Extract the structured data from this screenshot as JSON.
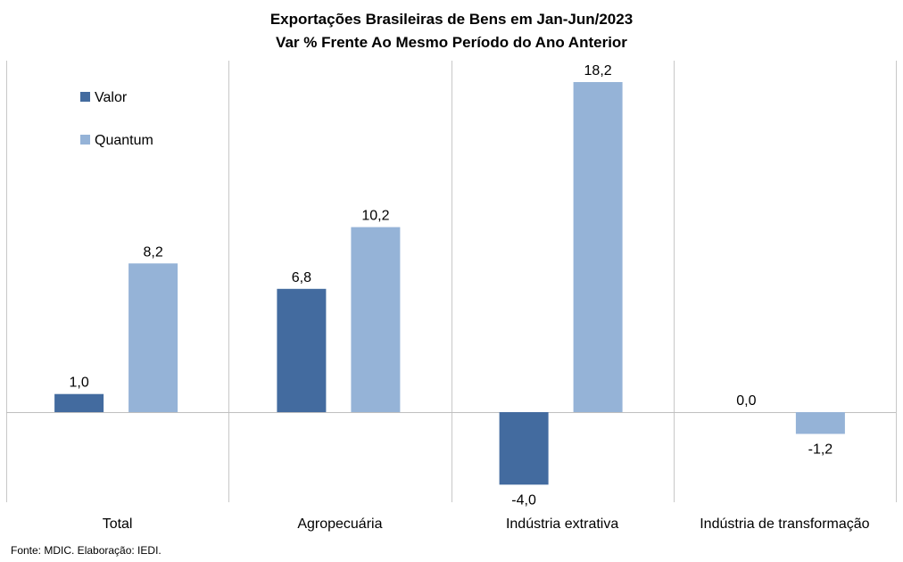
{
  "chart_data": {
    "type": "bar",
    "title": "Exportações Brasileiras de Bens em Jan-Jun/2023",
    "subtitle": "Var % Frente Ao Mesmo Período do Ano Anterior",
    "categories": [
      "Total",
      "Agropecuária",
      "Indústria extrativa",
      "Indústria de transformação"
    ],
    "series": [
      {
        "name": "Valor",
        "values": [
          1.0,
          6.8,
          -4.0,
          0.0
        ],
        "labels": [
          "1,0",
          "6,8",
          "-4,0",
          "0,0"
        ],
        "color": "#436b9f"
      },
      {
        "name": "Quantum",
        "values": [
          8.2,
          10.2,
          18.2,
          -1.2
        ],
        "labels": [
          "8,2",
          "10,2",
          "18,2",
          "-1,2"
        ],
        "color": "#95b3d7"
      }
    ],
    "ylim": [
      -5,
      19.7
    ],
    "grid": false,
    "legend": "top-left"
  },
  "footer": {
    "source": "Fonte: MDIC. Elaboração: IEDI."
  }
}
